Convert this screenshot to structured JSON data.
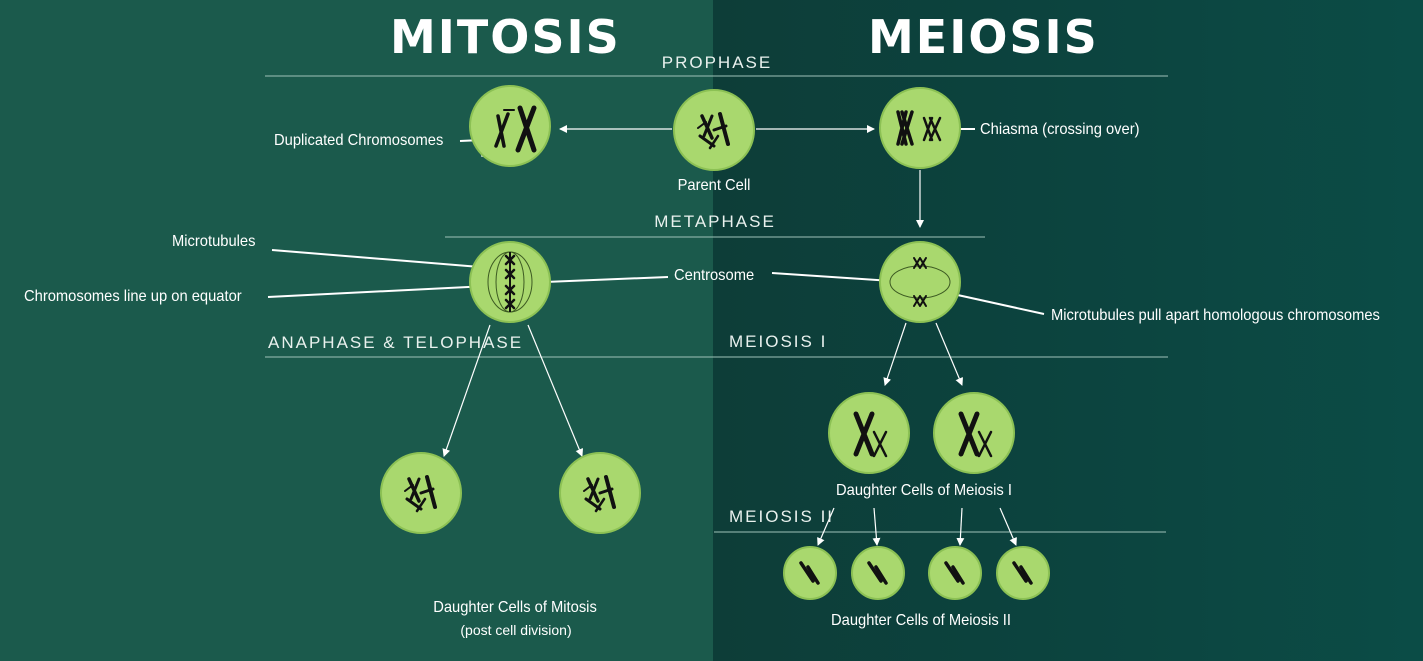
{
  "titles": {
    "mitosis": "MITOSIS",
    "meiosis": "MEIOSIS"
  },
  "phases": {
    "prophase": "PROPHASE",
    "metaphase": "METAPHASE",
    "anaphase_telophase": "ANAPHASE & TELOPHASE",
    "meiosis_1": "MEIOSIS I",
    "meiosis_2": "MEIOSIS II"
  },
  "labels": {
    "duplicated_chromosomes": "Duplicated Chromosomes",
    "parent_cell": "Parent Cell",
    "chiasma": "Chiasma (crossing over)",
    "microtubules": "Microtubules",
    "chromosomes_line_up": "Chromosomes line up on equator",
    "centrosome": "Centrosome",
    "microtubules_pull": "Microtubules pull apart homologous chromosomes",
    "daughter_meiosis_1": "Daughter Cells of Meiosis I",
    "daughter_mitosis": "Daughter Cells of Mitosis",
    "post_cell_division": "(post cell division)",
    "daughter_meiosis_2": "Daughter Cells of Meiosis II"
  },
  "colors": {
    "cell_fill": "#a9d86e",
    "cell_stroke": "#8cc154",
    "chromosome": "#111111",
    "left_panel": "#1b5a4c",
    "right_panel": "#0c4540",
    "line": "#ffffff"
  }
}
